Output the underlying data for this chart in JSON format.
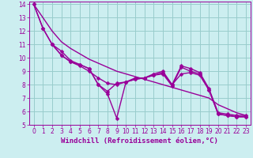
{
  "xlabel": "Windchill (Refroidissement éolien,°C)",
  "xlim": [
    -0.5,
    23.5
  ],
  "ylim": [
    5,
    14.2
  ],
  "yticks": [
    5,
    6,
    7,
    8,
    9,
    10,
    11,
    12,
    13,
    14
  ],
  "xticks": [
    0,
    1,
    2,
    3,
    4,
    5,
    6,
    7,
    8,
    9,
    10,
    11,
    12,
    13,
    14,
    15,
    16,
    17,
    18,
    19,
    20,
    21,
    22,
    23
  ],
  "bg_color": "#cceef0",
  "grid_color": "#99cccc",
  "line_color": "#990099",
  "lines": [
    {
      "x": [
        0,
        1,
        2,
        3,
        4,
        5,
        6,
        7,
        8,
        9,
        10,
        11,
        12,
        13,
        14,
        15,
        16,
        17,
        18,
        19,
        20,
        21,
        22,
        23
      ],
      "y": [
        14.0,
        12.2,
        11.0,
        10.2,
        9.7,
        9.5,
        9.2,
        8.0,
        7.3,
        5.5,
        8.2,
        8.5,
        8.5,
        8.8,
        9.0,
        8.0,
        9.4,
        9.2,
        8.9,
        7.7,
        5.9,
        5.8,
        5.7,
        5.7
      ],
      "has_markers": true
    },
    {
      "x": [
        2,
        3,
        4,
        5,
        6,
        7,
        8,
        9,
        10,
        11,
        12,
        13,
        14,
        15,
        16,
        17,
        18,
        19,
        20,
        21,
        22,
        23
      ],
      "y": [
        11.0,
        10.5,
        9.8,
        9.5,
        9.2,
        8.0,
        7.5,
        8.1,
        8.2,
        8.4,
        8.5,
        8.7,
        8.9,
        8.0,
        8.8,
        8.9,
        8.7,
        7.6,
        5.8,
        5.7,
        5.6,
        5.6
      ],
      "has_markers": true
    },
    {
      "x": [
        0,
        1,
        2,
        3,
        4,
        5,
        6,
        7,
        8,
        9,
        10,
        11,
        12,
        13,
        14,
        15,
        16,
        17,
        18,
        19,
        20,
        21,
        22,
        23
      ],
      "y": [
        14.0,
        13.0,
        12.0,
        11.2,
        10.7,
        10.3,
        9.9,
        9.6,
        9.3,
        9.0,
        8.8,
        8.6,
        8.4,
        8.2,
        8.0,
        7.8,
        7.6,
        7.4,
        7.2,
        7.0,
        6.5,
        6.2,
        5.9,
        5.7
      ],
      "has_markers": false
    },
    {
      "x": [
        0,
        1,
        2,
        3,
        4,
        5,
        6,
        7,
        8,
        9,
        10,
        11,
        12,
        13,
        14,
        15,
        16,
        17,
        18,
        19,
        20,
        21,
        22,
        23
      ],
      "y": [
        14.0,
        12.2,
        11.0,
        10.2,
        9.7,
        9.4,
        9.0,
        8.5,
        8.1,
        8.0,
        8.2,
        8.4,
        8.5,
        8.7,
        8.8,
        7.9,
        9.3,
        9.0,
        8.8,
        7.6,
        5.8,
        5.7,
        5.6,
        5.6
      ],
      "has_markers": true
    }
  ],
  "font_size": 6.5,
  "tick_font_size": 5.5,
  "line_width": 1.0,
  "marker_size": 2.5,
  "marker": "D"
}
